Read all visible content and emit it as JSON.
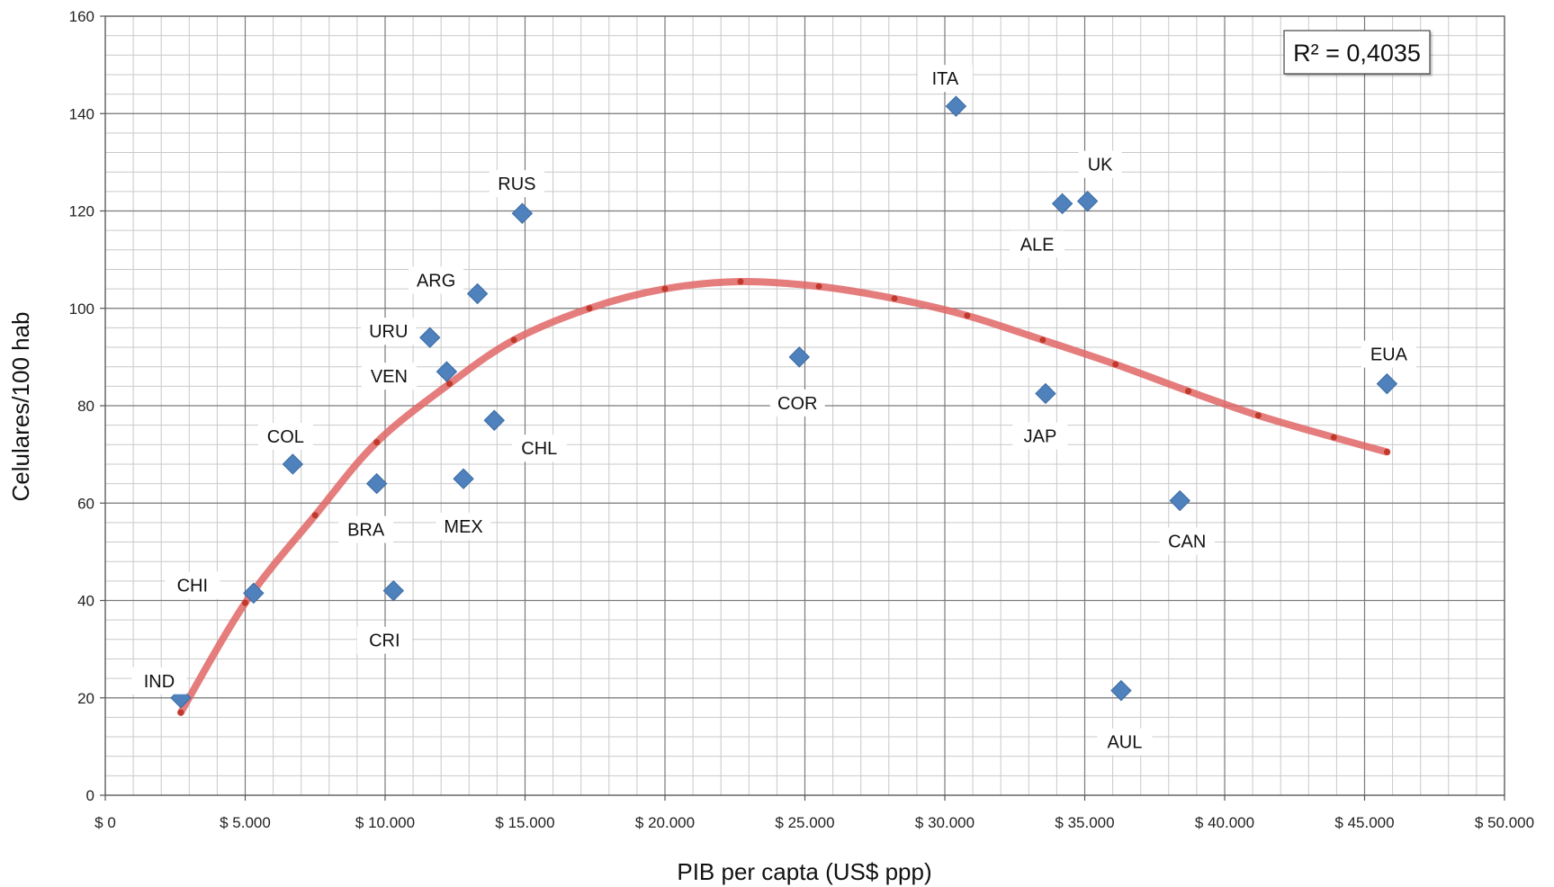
{
  "chart_data": {
    "type": "scatter",
    "title": "",
    "xlabel": "PIB per capta (US$ ppp)",
    "ylabel": "Celulares/100 hab",
    "xlim": [
      0,
      50000
    ],
    "ylim": [
      0,
      160
    ],
    "x_ticks": [
      0,
      5000,
      10000,
      15000,
      20000,
      25000,
      30000,
      35000,
      40000,
      45000,
      50000
    ],
    "x_tick_labels": [
      "$ 0",
      "$ 5.000",
      "$ 10.000",
      "$ 15.000",
      "$ 20.000",
      "$ 25.000",
      "$ 30.000",
      "$ 35.000",
      "$ 40.000",
      "$ 45.000",
      "$ 50.000"
    ],
    "y_ticks": [
      0,
      20,
      40,
      60,
      80,
      100,
      120,
      140,
      160
    ],
    "y_tick_labels": [
      "0",
      "20",
      "40",
      "60",
      "80",
      "100",
      "120",
      "140",
      "160"
    ],
    "grid": true,
    "marker_color": "#4f81bd",
    "trend_color": "#e06666",
    "r_squared_label": "R² = 0,4035",
    "points": [
      {
        "label": "IND",
        "x": 2700,
        "y": 20
      },
      {
        "label": "CHI",
        "x": 5300,
        "y": 41.5
      },
      {
        "label": "COL",
        "x": 6700,
        "y": 68
      },
      {
        "label": "BRA",
        "x": 9700,
        "y": 64
      },
      {
        "label": "CRI",
        "x": 10300,
        "y": 42
      },
      {
        "label": "URU",
        "x": 11600,
        "y": 94
      },
      {
        "label": "VEN",
        "x": 12200,
        "y": 87
      },
      {
        "label": "MEX",
        "x": 12800,
        "y": 65
      },
      {
        "label": "ARG",
        "x": 13300,
        "y": 103
      },
      {
        "label": "CHL",
        "x": 13900,
        "y": 77
      },
      {
        "label": "RUS",
        "x": 14900,
        "y": 119.5
      },
      {
        "label": "COR",
        "x": 24800,
        "y": 90
      },
      {
        "label": "ITA",
        "x": 30400,
        "y": 141.5
      },
      {
        "label": "JAP",
        "x": 33600,
        "y": 82.5
      },
      {
        "label": "ALE",
        "x": 34200,
        "y": 121.5
      },
      {
        "label": "UK",
        "x": 35100,
        "y": 122
      },
      {
        "label": "AUL",
        "x": 36300,
        "y": 21.5
      },
      {
        "label": "CAN",
        "x": 38400,
        "y": 60.5
      },
      {
        "label": "EUA",
        "x": 45800,
        "y": 84.5
      }
    ],
    "trendline": {
      "type": "polynomial",
      "x": [
        2700,
        5000,
        7500,
        9700,
        12300,
        14600,
        17300,
        20000,
        22700,
        25500,
        28200,
        30800,
        33500,
        36100,
        38700,
        41200,
        43900,
        45800
      ],
      "y": [
        17,
        39.5,
        57.5,
        72.5,
        84.5,
        93.5,
        100,
        104,
        105.5,
        104.5,
        102,
        98.5,
        93.5,
        88.5,
        83,
        78,
        73.5,
        70.5
      ]
    }
  }
}
